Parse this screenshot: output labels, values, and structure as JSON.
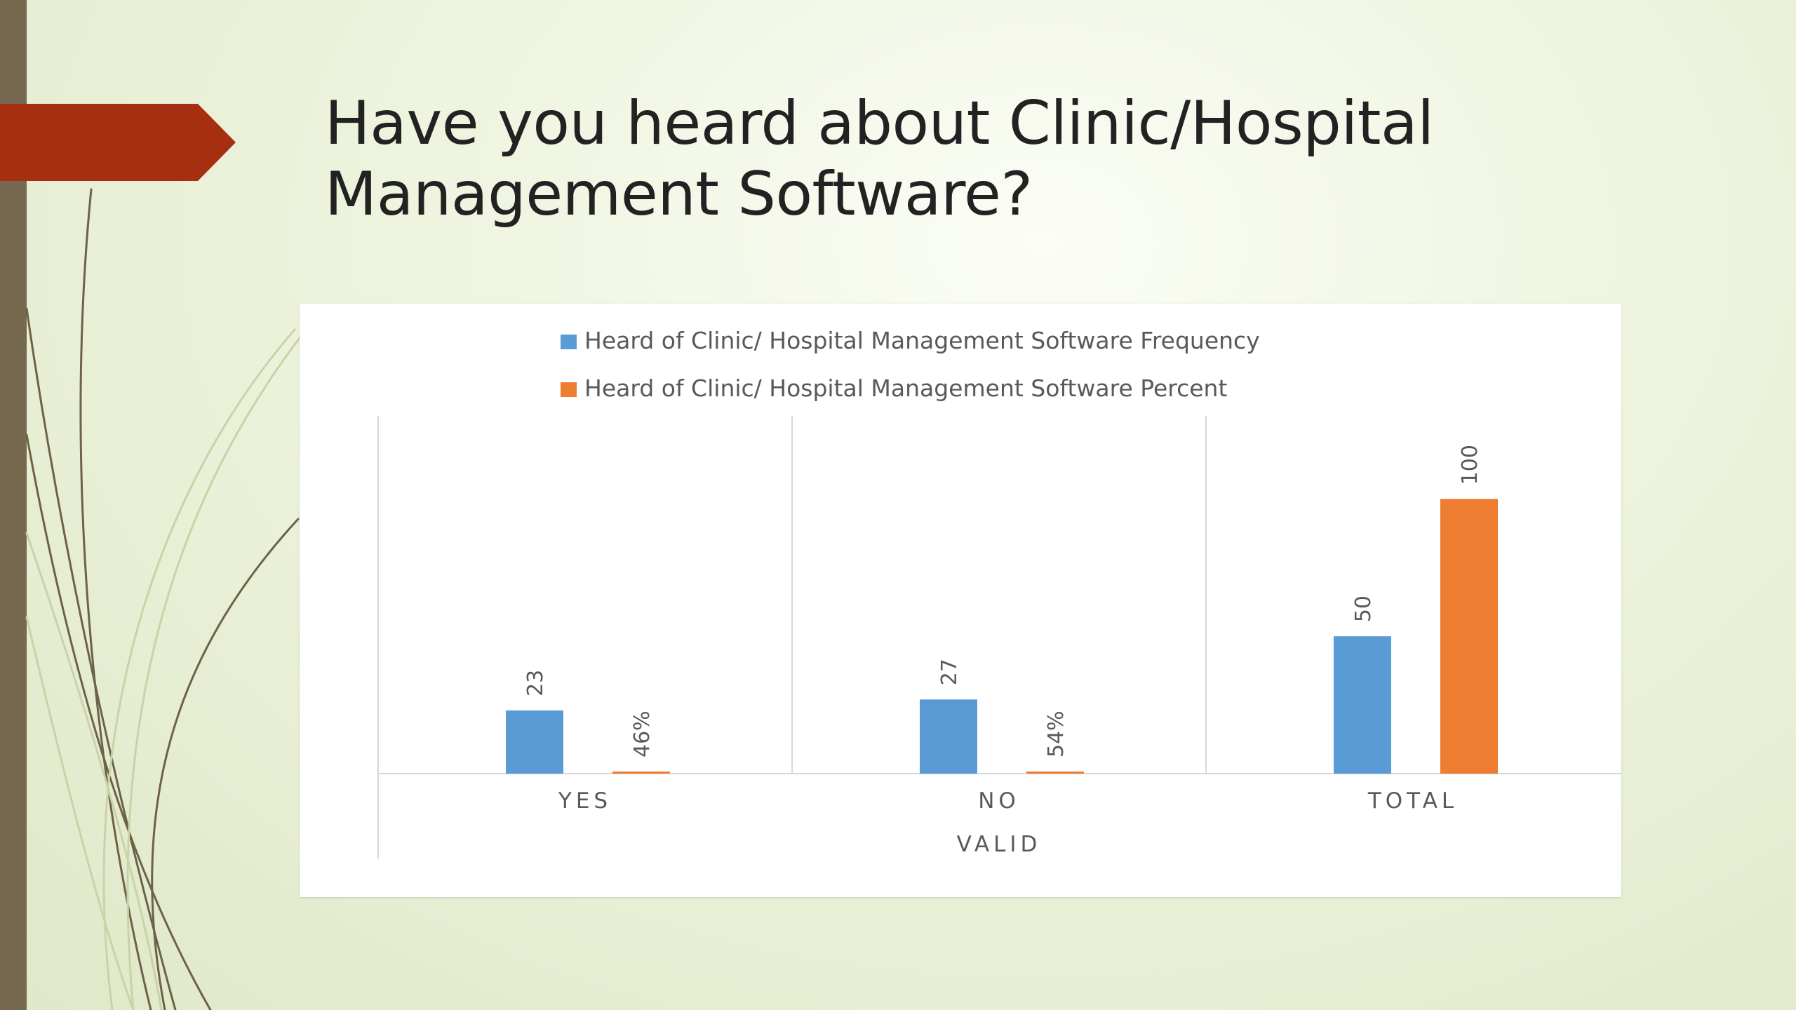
{
  "slide": {
    "title": "Have you heard about Clinic/Hospital Management Software?",
    "accent_color": "#a52f10",
    "bar_color": "#76694f"
  },
  "chart_data": {
    "type": "bar",
    "categories": [
      "YES",
      "NO",
      "TOTAL"
    ],
    "group_label": "VALID",
    "series": [
      {
        "name": "Heard of Clinic/ Hospital Management Software Frequency",
        "color": "#5b9bd5",
        "values": [
          23,
          27,
          50
        ],
        "labels": [
          "23",
          "27",
          "50"
        ]
      },
      {
        "name": "Heard of Clinic/ Hospital Management Software Percent",
        "color": "#ed7d31",
        "values": [
          0.46,
          0.54,
          100
        ],
        "labels": [
          "46%",
          "54%",
          "100"
        ]
      }
    ],
    "legend_position": "top",
    "ylim": [
      0,
      120
    ],
    "gridlines": false
  }
}
